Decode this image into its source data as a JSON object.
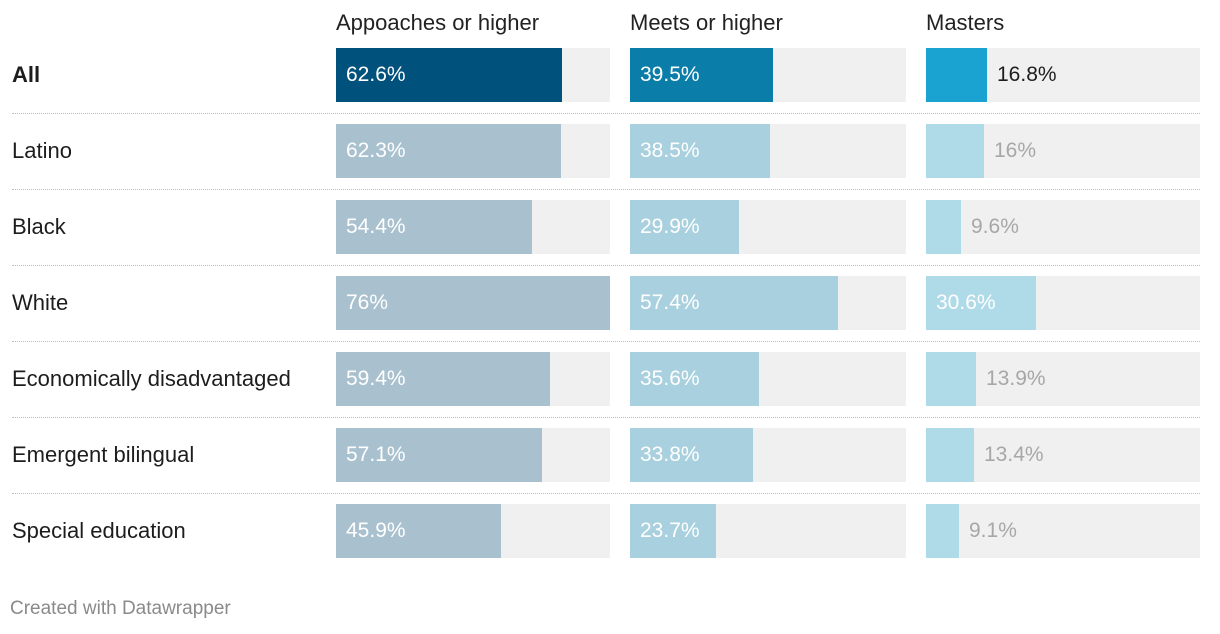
{
  "chart_data": {
    "type": "bar",
    "columns": [
      "Appoaches or higher",
      "Meets or higher",
      "Masters"
    ],
    "categories": [
      "All",
      "Latino",
      "Black",
      "White",
      "Economically disadvantaged",
      "Emergent bilingual",
      "Special education"
    ],
    "series": [
      {
        "name": "Appoaches or higher",
        "values": [
          62.6,
          62.3,
          54.4,
          76,
          59.4,
          57.1,
          45.9
        ],
        "labels": [
          "62.6%",
          "62.3%",
          "54.4%",
          "76%",
          "59.4%",
          "57.1%",
          "45.9%"
        ]
      },
      {
        "name": "Meets or higher",
        "values": [
          39.5,
          38.5,
          29.9,
          57.4,
          35.6,
          33.8,
          23.7
        ],
        "labels": [
          "39.5%",
          "38.5%",
          "29.9%",
          "57.4%",
          "35.6%",
          "33.8%",
          "23.7%"
        ]
      },
      {
        "name": "Masters",
        "values": [
          16.8,
          16,
          9.6,
          30.6,
          13.9,
          13.4,
          9.1
        ],
        "labels": [
          "16.8%",
          "16%",
          "9.6%",
          "30.6%",
          "13.9%",
          "13.4%",
          "9.1%"
        ]
      }
    ],
    "xlim": [
      0,
      76
    ],
    "highlight_row": "All",
    "colors": {
      "highlight": [
        "#00527c",
        "#0a7ea8",
        "#1aa3d1"
      ],
      "muted": [
        "#a9c1cf",
        "#a9d0de",
        "#afdbe9"
      ],
      "track": "#f0f0f0"
    }
  },
  "footer": "Created with Datawrapper"
}
